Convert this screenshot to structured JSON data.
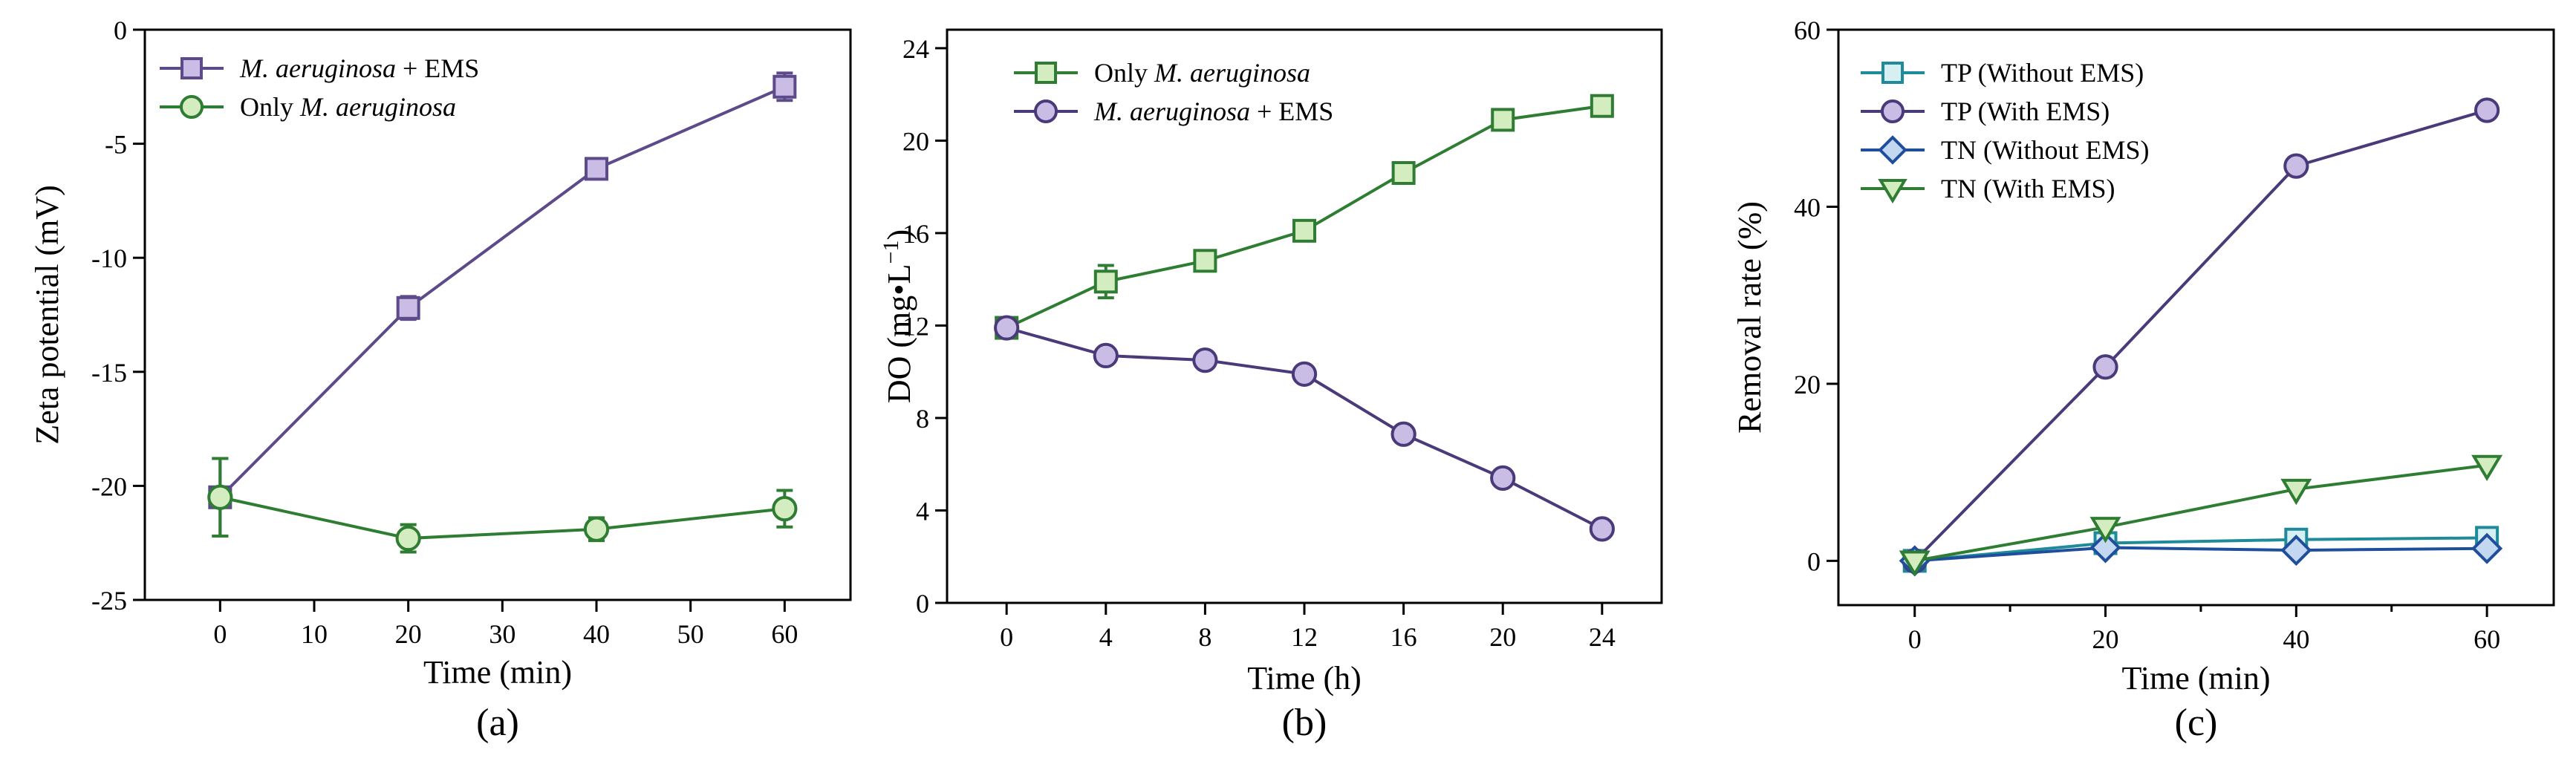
{
  "chart_data": [
    {
      "type": "line",
      "panel_label": "(a)",
      "xlabel": "Time (min)",
      "ylabel": "Zeta potential (mV)",
      "xlim": [
        -8,
        67
      ],
      "ylim": [
        -25,
        0
      ],
      "xticks": [
        0,
        10,
        20,
        30,
        40,
        50,
        60
      ],
      "yticks": [
        -25,
        -20,
        -15,
        -10,
        -5,
        0
      ],
      "xtick_labels": [
        "0",
        "10",
        "20",
        "30",
        "40",
        "50",
        "60"
      ],
      "ytick_labels": [
        "-25",
        "-20",
        "-15",
        "-10",
        "-5",
        "0"
      ],
      "grid": false,
      "legend_position": "top-left",
      "series": [
        {
          "name_italic": "M. aeruginosa",
          "name_suffix": " + EMS",
          "marker": "square",
          "line_color": "#5d4a8a",
          "fill_color": "#c9bde6",
          "x": [
            0,
            20,
            40,
            60
          ],
          "y": [
            -20.5,
            -12.2,
            -6.1,
            -2.5
          ],
          "err": [
            1.7,
            0.5,
            0.3,
            0.6
          ]
        },
        {
          "name_prefix": "Only ",
          "name_italic": "M. aeruginosa",
          "marker": "circle",
          "line_color": "#2e7d32",
          "fill_color": "#d3ecc0",
          "x": [
            0,
            20,
            40,
            60
          ],
          "y": [
            -20.5,
            -22.3,
            -21.9,
            -21.0
          ],
          "err": [
            1.7,
            0.6,
            0.5,
            0.8
          ]
        }
      ]
    },
    {
      "type": "line",
      "panel_label": "(b)",
      "xlabel": "Time (h)",
      "ylabel_prefix": "DO (mg•L",
      "ylabel_sup": "−1",
      "ylabel_suffix": ")",
      "xlim": [
        -2.4,
        26.4
      ],
      "ylim": [
        0,
        24.8
      ],
      "xticks": [
        0,
        4,
        8,
        12,
        16,
        20,
        24
      ],
      "yticks": [
        0,
        4,
        8,
        12,
        16,
        20,
        24
      ],
      "xtick_labels": [
        "0",
        "4",
        "8",
        "12",
        "16",
        "20",
        "24"
      ],
      "ytick_labels": [
        "0",
        "4",
        "8",
        "12",
        "16",
        "20",
        "24"
      ],
      "grid": false,
      "legend_position": "top-left",
      "series": [
        {
          "name_prefix": "Only ",
          "name_italic": "M. aeruginosa",
          "marker": "square",
          "line_color": "#2e7d32",
          "fill_color": "#d3ecc0",
          "x": [
            0,
            4,
            8,
            12,
            16,
            20,
            24
          ],
          "y": [
            11.9,
            13.9,
            14.8,
            16.1,
            18.6,
            20.9,
            21.5
          ],
          "err": [
            0.3,
            0.7,
            0.3,
            0.3,
            0.3,
            0.3,
            0.3
          ]
        },
        {
          "name_italic": "M. aeruginosa",
          "name_suffix": " + EMS",
          "marker": "circle",
          "line_color": "#4a3a7a",
          "fill_color": "#c9bde6",
          "x": [
            0,
            4,
            8,
            12,
            16,
            20,
            24
          ],
          "y": [
            11.9,
            10.7,
            10.5,
            9.9,
            7.3,
            5.4,
            3.2
          ],
          "err": [
            0.3,
            0.3,
            0.3,
            0.3,
            0.3,
            0.3,
            0.3
          ]
        }
      ]
    },
    {
      "type": "line",
      "panel_label": "(c)",
      "xlabel": "Time (min)",
      "ylabel": "Removal rate (%)",
      "xlim": [
        -8,
        67
      ],
      "ylim": [
        -5,
        60
      ],
      "xticks": [
        0,
        20,
        40,
        60
      ],
      "yticks": [
        0,
        20,
        40,
        60
      ],
      "xtick_labels": [
        "0",
        "20",
        "40",
        "60"
      ],
      "ytick_labels": [
        "0",
        "20",
        "40",
        "60"
      ],
      "minor_xticks": [
        10,
        30,
        50
      ],
      "grid": false,
      "legend_position": "top-left",
      "series": [
        {
          "name": "TP (Without EMS)",
          "marker": "square",
          "line_color": "#1f8a99",
          "fill_color": "#d6eff2",
          "x": [
            0,
            20,
            40,
            60
          ],
          "y": [
            0,
            2.0,
            2.4,
            2.6
          ]
        },
        {
          "name": "TP (With EMS)",
          "marker": "circle",
          "line_color": "#4a3a7a",
          "fill_color": "#c9bde6",
          "x": [
            0,
            20,
            40,
            60
          ],
          "y": [
            0,
            21.9,
            44.6,
            50.9
          ]
        },
        {
          "name": "TN (Without EMS)",
          "marker": "diamond",
          "line_color": "#1f4e9c",
          "fill_color": "#c4d7f0",
          "x": [
            0,
            20,
            40,
            60
          ],
          "y": [
            0,
            1.5,
            1.2,
            1.4
          ]
        },
        {
          "name": "TN (With EMS)",
          "marker": "triangle-down",
          "line_color": "#2e7d32",
          "fill_color": "#d3ecc0",
          "x": [
            0,
            20,
            40,
            60
          ],
          "y": [
            0,
            3.8,
            8.1,
            10.8
          ]
        }
      ]
    }
  ]
}
